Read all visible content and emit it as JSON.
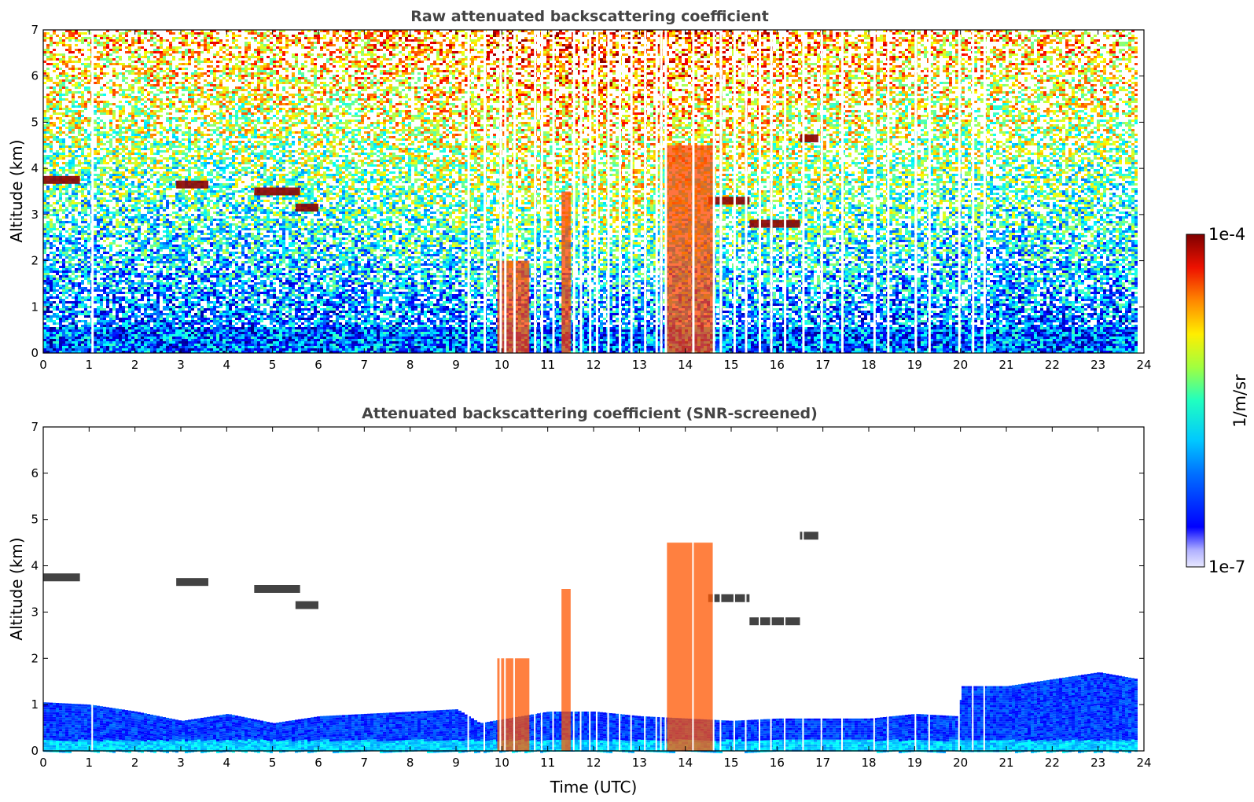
{
  "chart_data": [
    {
      "type": "heatmap",
      "title": "Raw attenuated backscattering coefficient",
      "xlabel": "",
      "ylabel": "Altitude (km)",
      "xlim": [
        0,
        24
      ],
      "ylim": [
        0,
        7
      ],
      "xticks": [
        "0",
        "1",
        "2",
        "3",
        "4",
        "5",
        "6",
        "7",
        "8",
        "9",
        "10",
        "11",
        "12",
        "13",
        "14",
        "15",
        "16",
        "17",
        "18",
        "19",
        "20",
        "21",
        "22",
        "23",
        "24"
      ],
      "yticks": [
        "0",
        "1",
        "2",
        "3",
        "4",
        "5",
        "6",
        "7"
      ],
      "features": [
        {
          "kind": "cloud_layer",
          "t_start": 0.0,
          "t_end": 0.8,
          "alt_km": 3.75
        },
        {
          "kind": "cloud_layer",
          "t_start": 2.9,
          "t_end": 3.6,
          "alt_km": 3.65
        },
        {
          "kind": "cloud_layer",
          "t_start": 4.6,
          "t_end": 5.6,
          "alt_km": 3.5
        },
        {
          "kind": "cloud_layer",
          "t_start": 5.5,
          "t_end": 6.0,
          "alt_km": 3.15
        },
        {
          "kind": "cloud_layer",
          "t_start": 14.5,
          "t_end": 15.4,
          "alt_km": 3.3
        },
        {
          "kind": "cloud_layer",
          "t_start": 15.4,
          "t_end": 16.5,
          "alt_km": 2.8
        },
        {
          "kind": "cloud_layer",
          "t_start": 16.5,
          "t_end": 16.9,
          "alt_km": 4.65
        },
        {
          "kind": "precipitation",
          "t_start": 9.9,
          "t_end": 10.6,
          "alt_top_km": 2.0
        },
        {
          "kind": "precipitation",
          "t_start": 11.3,
          "t_end": 11.5,
          "alt_top_km": 3.5
        },
        {
          "kind": "precipitation",
          "t_start": 13.6,
          "t_end": 14.6,
          "alt_top_km": 4.5
        }
      ],
      "data_gaps_utc": [
        1.05,
        9.25,
        9.6,
        9.95,
        10.05,
        10.25,
        10.7,
        10.85,
        11.1,
        11.55,
        11.7,
        11.9,
        12.05,
        12.3,
        12.55,
        12.8,
        13.1,
        13.35,
        13.45,
        13.55,
        14.15,
        14.6,
        14.75,
        15.05,
        15.3,
        15.6,
        15.85,
        16.15,
        16.55,
        16.95,
        17.4,
        18.1,
        18.4,
        19.0,
        19.3,
        19.95,
        20.25,
        20.5
      ]
    },
    {
      "type": "heatmap",
      "title": "Attenuated backscattering coefficient (SNR-screened)",
      "xlabel": "Time (UTC)",
      "ylabel": "Altitude (km)",
      "xlim": [
        0,
        24
      ],
      "ylim": [
        0,
        7
      ],
      "xticks": [
        "0",
        "1",
        "2",
        "3",
        "4",
        "5",
        "6",
        "7",
        "8",
        "9",
        "10",
        "11",
        "12",
        "13",
        "14",
        "15",
        "16",
        "17",
        "18",
        "19",
        "20",
        "21",
        "22",
        "23",
        "24"
      ],
      "yticks": [
        "0",
        "1",
        "2",
        "3",
        "4",
        "5",
        "6",
        "7"
      ],
      "boundary_layer_top_km": [
        [
          0,
          1.05
        ],
        [
          1,
          1.0
        ],
        [
          2,
          0.85
        ],
        [
          3,
          0.65
        ],
        [
          4,
          0.8
        ],
        [
          5,
          0.6
        ],
        [
          6,
          0.75
        ],
        [
          7,
          0.8
        ],
        [
          8,
          0.85
        ],
        [
          9,
          0.9
        ],
        [
          9.5,
          0.6
        ],
        [
          11,
          0.85
        ],
        [
          12,
          0.85
        ],
        [
          13,
          0.75
        ],
        [
          14,
          0.7
        ],
        [
          15,
          0.65
        ],
        [
          16,
          0.7
        ],
        [
          17,
          0.7
        ],
        [
          18,
          0.7
        ],
        [
          19,
          0.8
        ],
        [
          19.9,
          0.75
        ],
        [
          20,
          1.4
        ],
        [
          21,
          1.4
        ],
        [
          22,
          1.55
        ],
        [
          23,
          1.7
        ],
        [
          23.85,
          1.55
        ]
      ]
    }
  ],
  "colorbar": {
    "label": "1/m/sr",
    "max_label": "1e-4",
    "min_label": "1e-7",
    "scale": "log",
    "colormap": "jet"
  }
}
